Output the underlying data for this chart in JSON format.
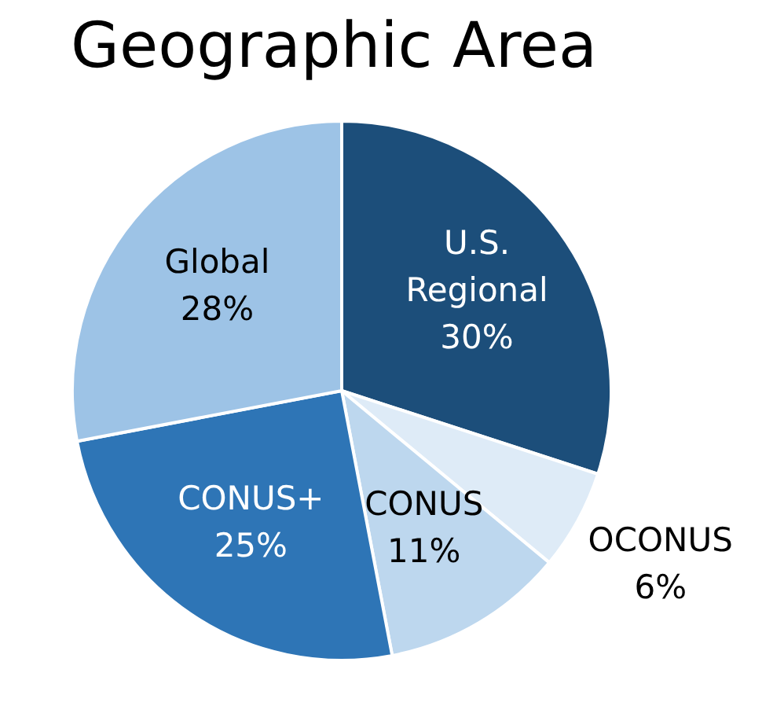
{
  "chart_data": {
    "type": "pie",
    "title": "Geographic Area",
    "categories": [
      "U.S. Regional",
      "OCONUS",
      "CONUS",
      "CONUS+",
      "Global"
    ],
    "values": [
      30,
      6,
      11,
      25,
      28
    ],
    "value_labels": [
      "30%",
      "6%",
      "11%",
      "25%",
      "28%"
    ],
    "colors": [
      "#1c4e7a",
      "#deebf7",
      "#bdd7ee",
      "#2e75b6",
      "#9dc3e6"
    ],
    "legend": false
  }
}
